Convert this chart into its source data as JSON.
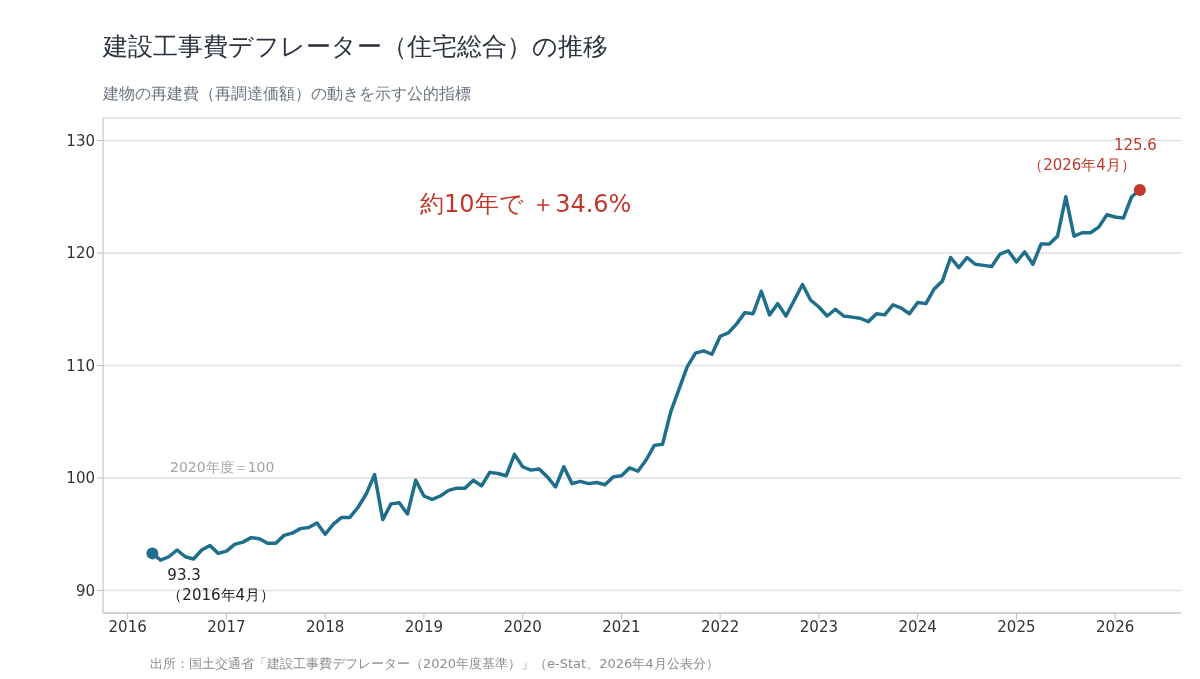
{
  "chart_data": {
    "type": "line",
    "title": "建設工事費デフレーター（住宅総合）の推移",
    "subtitle": "建物の再建費（再調達価額）の動きを示す公的指標",
    "x": [
      "2016-04",
      "2016-05",
      "2016-06",
      "2016-07",
      "2016-08",
      "2016-09",
      "2016-10",
      "2016-11",
      "2016-12",
      "2017-01",
      "2017-02",
      "2017-03",
      "2017-04",
      "2017-05",
      "2017-06",
      "2017-07",
      "2017-08",
      "2017-09",
      "2017-10",
      "2017-11",
      "2017-12",
      "2018-01",
      "2018-02",
      "2018-03",
      "2018-04",
      "2018-05",
      "2018-06",
      "2018-07",
      "2018-08",
      "2018-09",
      "2018-10",
      "2018-11",
      "2018-12",
      "2019-01",
      "2019-02",
      "2019-03",
      "2019-04",
      "2019-05",
      "2019-06",
      "2019-07",
      "2019-08",
      "2019-09",
      "2019-10",
      "2019-11",
      "2019-12",
      "2020-01",
      "2020-02",
      "2020-03",
      "2020-04",
      "2020-05",
      "2020-06",
      "2020-07",
      "2020-08",
      "2020-09",
      "2020-10",
      "2020-11",
      "2020-12",
      "2021-01",
      "2021-02",
      "2021-03",
      "2021-04",
      "2021-05",
      "2021-06",
      "2021-07",
      "2021-08",
      "2021-09",
      "2021-10",
      "2021-11",
      "2021-12",
      "2022-01",
      "2022-02",
      "2022-03",
      "2022-04",
      "2022-05",
      "2022-06",
      "2022-07",
      "2022-08",
      "2022-09",
      "2022-10",
      "2022-11",
      "2022-12",
      "2023-01",
      "2023-02",
      "2023-03",
      "2023-04",
      "2023-05",
      "2023-06",
      "2023-07",
      "2023-08",
      "2023-09",
      "2023-10",
      "2023-11",
      "2023-12",
      "2024-01",
      "2024-02",
      "2024-03",
      "2024-04",
      "2024-05",
      "2024-06",
      "2024-07",
      "2024-08",
      "2024-09",
      "2024-10",
      "2024-11",
      "2024-12",
      "2025-01",
      "2025-02",
      "2025-03",
      "2025-04",
      "2025-05",
      "2025-06",
      "2025-07",
      "2025-08",
      "2025-09",
      "2025-10",
      "2025-11",
      "2025-12",
      "2026-01",
      "2026-02",
      "2026-03",
      "2026-04"
    ],
    "series": [
      {
        "color": "#1f6e8c",
        "values": [
          93.3,
          92.7,
          93.0,
          93.6,
          93.0,
          92.8,
          93.6,
          94.0,
          93.3,
          93.5,
          94.1,
          94.3,
          94.7,
          94.6,
          94.2,
          94.2,
          94.9,
          95.1,
          95.5,
          95.6,
          96.0,
          95.0,
          95.9,
          96.5,
          96.5,
          97.4,
          98.6,
          100.3,
          96.3,
          97.7,
          97.8,
          96.8,
          99.8,
          98.4,
          98.1,
          98.4,
          98.9,
          99.1,
          99.1,
          99.8,
          99.3,
          100.5,
          100.4,
          100.2,
          102.1,
          101.0,
          100.7,
          100.8,
          100.1,
          99.2,
          101.0,
          99.5,
          99.7,
          99.5,
          99.6,
          99.4,
          100.1,
          100.2,
          100.9,
          100.6,
          101.6,
          102.9,
          103.0,
          105.9,
          107.9,
          109.9,
          111.1,
          111.3,
          111.0,
          112.6,
          112.9,
          113.7,
          114.7,
          114.6,
          116.6,
          114.5,
          115.5,
          114.4,
          115.8,
          117.2,
          115.8,
          115.2,
          114.4,
          115.0,
          114.4,
          114.3,
          114.2,
          113.9,
          114.6,
          114.5,
          115.4,
          115.1,
          114.6,
          115.6,
          115.5,
          116.8,
          117.5,
          119.6,
          118.7,
          119.6,
          119.0,
          118.9,
          118.8,
          119.9,
          120.2,
          119.2,
          120.1,
          119.0,
          120.8,
          120.8,
          121.5,
          125.0,
          121.5,
          121.8,
          121.8,
          122.3,
          123.4,
          123.2,
          123.1,
          125.0,
          125.6
        ]
      },
      {
        "type": "scatter",
        "marker": "circle",
        "color": "#1f6e8c",
        "x": [
          "2016-04"
        ],
        "values": [
          93.3
        ]
      },
      {
        "type": "scatter",
        "marker": "circle",
        "color": "#c0392b",
        "x": [
          "2026-04"
        ],
        "values": [
          125.6
        ]
      }
    ],
    "xlim": [
      "2015-10",
      "2026-09"
    ],
    "xticks": [
      "2016",
      "2017",
      "2018",
      "2019",
      "2020",
      "2021",
      "2022",
      "2023",
      "2024",
      "2025",
      "2026"
    ],
    "ylim": [
      88,
      132
    ],
    "yticks": [
      90,
      100,
      110,
      120,
      130
    ],
    "grid": "y",
    "marker": "none",
    "line_style": "solid",
    "annotations": [
      "約10年で ＋34.6%",
      {
        "text": "93.3\n（2016年4月）",
        "x": "2016-04",
        "y": 93.3
      },
      {
        "text": "125.6\n（2026年4月）",
        "x": "2026-04",
        "y": 125.6
      },
      "2020年度＝100",
      "出所：国土交通省「建設工事費デフレーター（2020年度基準）」（e-Stat、2026年4月公表分）"
    ]
  }
}
